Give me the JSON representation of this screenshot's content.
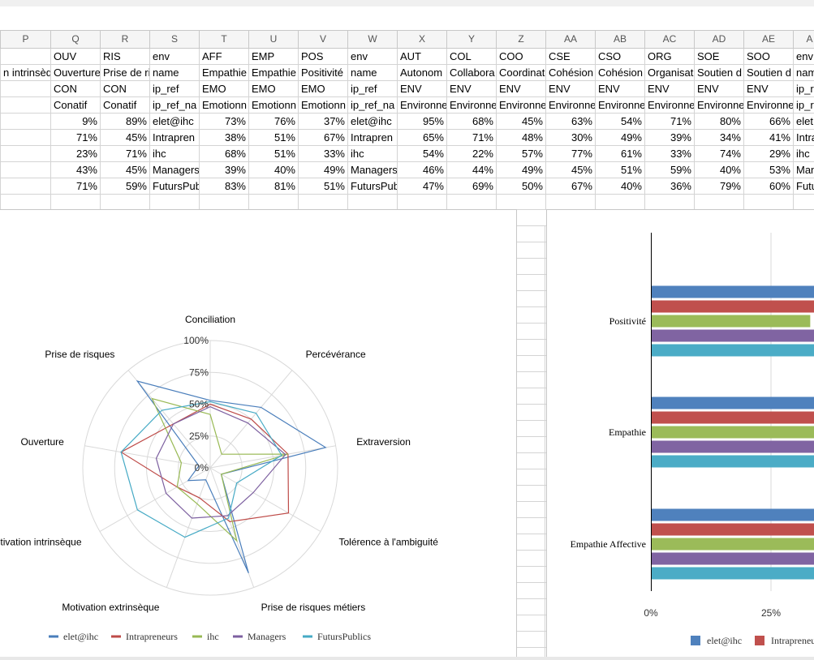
{
  "sheet": {
    "columns": [
      "P",
      "Q",
      "R",
      "S",
      "T",
      "U",
      "V",
      "W",
      "X",
      "Y",
      "Z",
      "AA",
      "AB",
      "AC",
      "AD",
      "AE",
      "A"
    ],
    "rows": [
      [
        "",
        "OUV",
        "RIS",
        "env",
        "AFF",
        "EMP",
        "POS",
        "env",
        "AUT",
        "COL",
        "COO",
        "CSE",
        "CSO",
        "ORG",
        "SOE",
        "SOO",
        "env"
      ],
      [
        "n intrinsèq",
        "Ouverture",
        "Prise de ri",
        "name",
        "Empathie",
        "Empathie",
        "Positivité",
        "name",
        "Autonom",
        "Collabora",
        "Coordinat",
        "Cohésion",
        "Cohésion",
        "Organisat",
        "Soutien d",
        "Soutien d",
        "nam"
      ],
      [
        "",
        "CON",
        "CON",
        "ip_ref",
        "EMO",
        "EMO",
        "EMO",
        "ip_ref",
        "ENV",
        "ENV",
        "ENV",
        "ENV",
        "ENV",
        "ENV",
        "ENV",
        "ENV",
        "ip_r"
      ],
      [
        "",
        "Conatif",
        "Conatif",
        "ip_ref_na",
        "Emotionn",
        "Emotionn",
        "Emotionn",
        "ip_ref_na",
        "Environne",
        "Environne",
        "Environne",
        "Environne",
        "Environne",
        "Environne",
        "Environne",
        "Environne",
        "ip_r"
      ],
      [
        "",
        "9%",
        "89%",
        "elet@ihc",
        "73%",
        "76%",
        "37%",
        "elet@ihc",
        "95%",
        "68%",
        "45%",
        "63%",
        "54%",
        "71%",
        "80%",
        "66%",
        "elet"
      ],
      [
        "",
        "71%",
        "45%",
        "Intrapren",
        "38%",
        "51%",
        "67%",
        "Intrapren",
        "65%",
        "71%",
        "48%",
        "30%",
        "49%",
        "39%",
        "34%",
        "41%",
        "Intra"
      ],
      [
        "",
        "23%",
        "71%",
        "ihc",
        "68%",
        "51%",
        "33%",
        "ihc",
        "54%",
        "22%",
        "57%",
        "77%",
        "61%",
        "33%",
        "74%",
        "29%",
        "ihc"
      ],
      [
        "",
        "43%",
        "45%",
        "Managers",
        "39%",
        "40%",
        "49%",
        "Managers",
        "46%",
        "44%",
        "49%",
        "45%",
        "51%",
        "59%",
        "40%",
        "53%",
        "Man"
      ],
      [
        "",
        "71%",
        "59%",
        "FutursPub",
        "83%",
        "81%",
        "51%",
        "FutursPub",
        "47%",
        "69%",
        "50%",
        "67%",
        "40%",
        "36%",
        "79%",
        "60%",
        "Futu"
      ],
      [
        "",
        "",
        "",
        "",
        "",
        "",
        "",
        "",
        "",
        "",
        "",
        "",
        "",
        "",
        "",
        "",
        ""
      ]
    ]
  },
  "chart_data": [
    {
      "type": "radar",
      "axes": [
        "Conciliation",
        "Percévérance",
        "Extraversion",
        "Tolérence à l'ambiguité",
        "Prise de risques métiers",
        "Motivation extrinsèque",
        "Motivation intrinsèque",
        "Ouverture",
        "Prise de risques"
      ],
      "ticks": [
        "0%",
        "25%",
        "50%",
        "75%",
        "100%"
      ],
      "series": [
        {
          "name": "elet@ihc",
          "color": "#4a7ebb",
          "values": [
            53,
            62,
            92,
            10,
            88,
            10,
            20,
            9,
            89
          ]
        },
        {
          "name": "Intrapreneurs",
          "color": "#be4b48",
          "values": [
            50,
            50,
            62,
            71,
            45,
            25,
            30,
            71,
            45
          ]
        },
        {
          "name": "ihc",
          "color": "#98b954",
          "values": [
            42,
            14,
            62,
            10,
            61,
            30,
            30,
            23,
            71
          ]
        },
        {
          "name": "Managers",
          "color": "#7d60a0",
          "values": [
            48,
            46,
            60,
            39,
            40,
            42,
            40,
            43,
            45
          ]
        },
        {
          "name": "FutursPublics",
          "color": "#46aac5",
          "values": [
            52,
            56,
            57,
            24,
            42,
            58,
            66,
            71,
            59
          ]
        }
      ],
      "legend_position": "bottom"
    },
    {
      "type": "bar",
      "orientation": "horizontal",
      "categories": [
        "Positivité",
        "Empathie",
        "Empathie Affective"
      ],
      "series": [
        {
          "name": "elet@ihc",
          "color": "#4f81bd",
          "values": [
            37,
            76,
            73
          ]
        },
        {
          "name": "Intrapreneurs",
          "color": "#c0504d",
          "values": [
            67,
            51,
            38
          ]
        },
        {
          "name": "ihc",
          "color": "#9bbb59",
          "values": [
            33,
            51,
            68
          ]
        },
        {
          "name": "Managers",
          "color": "#8064a2",
          "values": [
            49,
            40,
            39
          ]
        },
        {
          "name": "FutursPublics",
          "color": "#4bacc6",
          "values": [
            51,
            81,
            83
          ]
        }
      ],
      "ticks": [
        "0%",
        "25%"
      ],
      "legend_entries": [
        "elet@ihc",
        "Intrapreneu"
      ],
      "legend_position": "bottom"
    }
  ]
}
